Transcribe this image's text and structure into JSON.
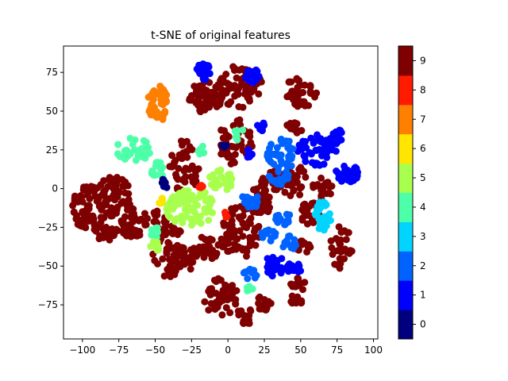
{
  "chart_data": {
    "type": "scatter",
    "title": "t-SNE of original features",
    "xlabel": "",
    "ylabel": "",
    "xlim": [
      -113,
      103
    ],
    "ylim": [
      -97,
      92
    ],
    "xticks": [
      -100,
      -75,
      -50,
      -25,
      0,
      25,
      50,
      75,
      100
    ],
    "xtick_labels": [
      "−100",
      "−75",
      "−50",
      "−25",
      "0",
      "25",
      "50",
      "75",
      "100"
    ],
    "yticks": [
      -75,
      -50,
      -25,
      0,
      25,
      50,
      75
    ],
    "ytick_labels": [
      "−75",
      "−50",
      "−25",
      "0",
      "25",
      "50",
      "75"
    ],
    "grid": false,
    "colorbar": {
      "labels": [
        "0",
        "1",
        "2",
        "3",
        "4",
        "5",
        "6",
        "7",
        "8",
        "9"
      ],
      "colors": [
        "#00007f",
        "#0000ff",
        "#0063ff",
        "#00d4ff",
        "#4effa9",
        "#a9ff4e",
        "#ffe500",
        "#ff7f00",
        "#ff1a00",
        "#7f0000"
      ]
    },
    "clusters": [
      {
        "label": 9,
        "x": -95,
        "y": -12,
        "rx": 12,
        "ry": 15,
        "n": 70
      },
      {
        "label": 9,
        "x": -78,
        "y": -5,
        "rx": 12,
        "ry": 13,
        "n": 55
      },
      {
        "label": 9,
        "x": -65,
        "y": -22,
        "rx": 10,
        "ry": 10,
        "n": 40
      },
      {
        "label": 9,
        "x": -83,
        "y": -28,
        "rx": 8,
        "ry": 6,
        "n": 25
      },
      {
        "label": 9,
        "x": -40,
        "y": -40,
        "rx": 12,
        "ry": 18,
        "n": 55
      },
      {
        "label": 9,
        "x": -28,
        "y": -45,
        "rx": 8,
        "ry": 8,
        "n": 25
      },
      {
        "label": 9,
        "x": -30,
        "y": 14,
        "rx": 10,
        "ry": 18,
        "n": 45
      },
      {
        "label": 9,
        "x": -15,
        "y": 60,
        "rx": 12,
        "ry": 12,
        "n": 50
      },
      {
        "label": 9,
        "x": 8,
        "y": 66,
        "rx": 16,
        "ry": 14,
        "n": 70
      },
      {
        "label": 9,
        "x": 5,
        "y": 30,
        "rx": 12,
        "ry": 15,
        "n": 50
      },
      {
        "label": 9,
        "x": 8,
        "y": -28,
        "rx": 14,
        "ry": 18,
        "n": 70
      },
      {
        "label": 9,
        "x": 20,
        "y": -10,
        "rx": 10,
        "ry": 10,
        "n": 40
      },
      {
        "label": 9,
        "x": -15,
        "y": -38,
        "rx": 10,
        "ry": 8,
        "n": 30
      },
      {
        "label": 9,
        "x": -5,
        "y": -70,
        "rx": 12,
        "ry": 12,
        "n": 50
      },
      {
        "label": 9,
        "x": 12,
        "y": -82,
        "rx": 6,
        "ry": 6,
        "n": 20
      },
      {
        "label": 9,
        "x": 25,
        "y": -74,
        "rx": 6,
        "ry": 5,
        "n": 15
      },
      {
        "label": 9,
        "x": 50,
        "y": 62,
        "rx": 12,
        "ry": 10,
        "n": 40
      },
      {
        "label": 9,
        "x": 45,
        "y": 38,
        "rx": 6,
        "ry": 5,
        "n": 15
      },
      {
        "label": 9,
        "x": 45,
        "y": 5,
        "rx": 10,
        "ry": 10,
        "n": 35
      },
      {
        "label": 9,
        "x": 55,
        "y": -15,
        "rx": 8,
        "ry": 8,
        "n": 20
      },
      {
        "label": 9,
        "x": 65,
        "y": 0,
        "rx": 7,
        "ry": 7,
        "n": 20
      },
      {
        "label": 9,
        "x": 78,
        "y": -38,
        "rx": 8,
        "ry": 14,
        "n": 30
      },
      {
        "label": 9,
        "x": 48,
        "y": -62,
        "rx": 5,
        "ry": 5,
        "n": 12
      },
      {
        "label": 9,
        "x": 52,
        "y": -38,
        "rx": 6,
        "ry": 5,
        "n": 12
      },
      {
        "label": 9,
        "x": 47,
        "y": -72,
        "rx": 4,
        "ry": 4,
        "n": 10
      },
      {
        "label": 9,
        "x": 30,
        "y": 5,
        "rx": 8,
        "ry": 8,
        "n": 20
      },
      {
        "label": 9,
        "x": -48,
        "y": -22,
        "rx": 6,
        "ry": 8,
        "n": 18
      },
      {
        "label": 7,
        "x": -48,
        "y": 55,
        "rx": 7,
        "ry": 12,
        "n": 55
      },
      {
        "label": 1,
        "x": -17,
        "y": 75,
        "rx": 5,
        "ry": 7,
        "n": 25
      },
      {
        "label": 1,
        "x": 17,
        "y": 73,
        "rx": 5,
        "ry": 5,
        "n": 15
      },
      {
        "label": 1,
        "x": 62,
        "y": 25,
        "rx": 14,
        "ry": 10,
        "n": 45
      },
      {
        "label": 1,
        "x": 82,
        "y": 10,
        "rx": 8,
        "ry": 6,
        "n": 25
      },
      {
        "label": 1,
        "x": 75,
        "y": 33,
        "rx": 6,
        "ry": 5,
        "n": 15
      },
      {
        "label": 1,
        "x": 23,
        "y": 40,
        "rx": 3,
        "ry": 3,
        "n": 8
      },
      {
        "label": 1,
        "x": 32,
        "y": -50,
        "rx": 7,
        "ry": 7,
        "n": 25
      },
      {
        "label": 1,
        "x": 45,
        "y": -52,
        "rx": 5,
        "ry": 5,
        "n": 15
      },
      {
        "label": 1,
        "x": 14,
        "y": 22,
        "rx": 3,
        "ry": 3,
        "n": 6
      },
      {
        "label": 2,
        "x": 37,
        "y": 22,
        "rx": 10,
        "ry": 10,
        "n": 40
      },
      {
        "label": 2,
        "x": 35,
        "y": 8,
        "rx": 7,
        "ry": 6,
        "n": 20
      },
      {
        "label": 2,
        "x": 15,
        "y": -8,
        "rx": 7,
        "ry": 5,
        "n": 20
      },
      {
        "label": 2,
        "x": 37,
        "y": -18,
        "rx": 6,
        "ry": 6,
        "n": 15
      },
      {
        "label": 2,
        "x": 28,
        "y": -30,
        "rx": 5,
        "ry": 5,
        "n": 12
      },
      {
        "label": 2,
        "x": 42,
        "y": -35,
        "rx": 5,
        "ry": 5,
        "n": 12
      },
      {
        "label": 2,
        "x": 15,
        "y": -55,
        "rx": 5,
        "ry": 4,
        "n": 10
      },
      {
        "label": 3,
        "x": 65,
        "y": -18,
        "rx": 6,
        "ry": 10,
        "n": 35
      },
      {
        "label": 4,
        "x": -65,
        "y": 25,
        "rx": 12,
        "ry": 8,
        "n": 35
      },
      {
        "label": 4,
        "x": -48,
        "y": 12,
        "rx": 5,
        "ry": 5,
        "n": 15
      },
      {
        "label": 4,
        "x": -18,
        "y": 25,
        "rx": 3,
        "ry": 3,
        "n": 8
      },
      {
        "label": 4,
        "x": 8,
        "y": 35,
        "rx": 4,
        "ry": 4,
        "n": 8
      },
      {
        "label": 4,
        "x": -50,
        "y": -28,
        "rx": 4,
        "ry": 4,
        "n": 8
      },
      {
        "label": 4,
        "x": 15,
        "y": -65,
        "rx": 3,
        "ry": 3,
        "n": 6
      },
      {
        "label": 5,
        "x": -25,
        "y": -12,
        "rx": 18,
        "ry": 12,
        "n": 80
      },
      {
        "label": 5,
        "x": -5,
        "y": 5,
        "rx": 8,
        "ry": 8,
        "n": 25
      },
      {
        "label": 5,
        "x": -50,
        "y": -38,
        "rx": 4,
        "ry": 4,
        "n": 10
      },
      {
        "label": 0,
        "x": -44,
        "y": 3,
        "rx": 3,
        "ry": 3,
        "n": 10
      },
      {
        "label": 0,
        "x": -2,
        "y": 28,
        "rx": 2,
        "ry": 2,
        "n": 4
      },
      {
        "label": 6,
        "x": -46,
        "y": -8,
        "rx": 2,
        "ry": 2,
        "n": 4
      },
      {
        "label": 8,
        "x": -18,
        "y": 1,
        "rx": 2,
        "ry": 2,
        "n": 4
      },
      {
        "label": 8,
        "x": -2,
        "y": -17,
        "rx": 2,
        "ry": 2,
        "n": 4
      }
    ]
  }
}
